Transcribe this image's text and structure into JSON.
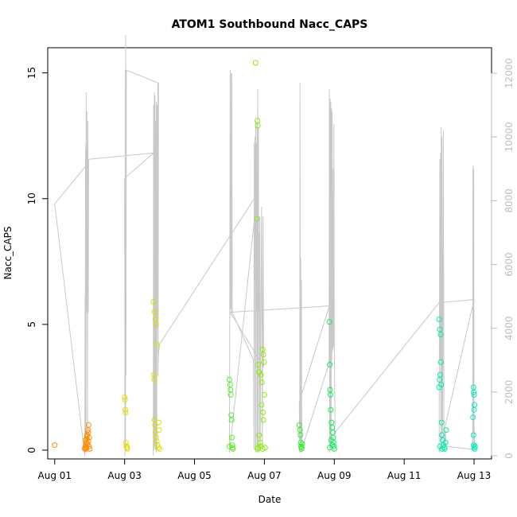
{
  "chart_data": {
    "type": "scatter",
    "title": "ATOM1 Southbound Nacc_CAPS",
    "xlabel": "Date",
    "ylabel": "Nacc_CAPS",
    "x_tick_labels": [
      "Aug 01",
      "Aug 03",
      "Aug 05",
      "Aug 07",
      "Aug 09",
      "Aug 11",
      "Aug 13"
    ],
    "x_tick_days": [
      1,
      3,
      5,
      7,
      9,
      11,
      13
    ],
    "xlim_days": [
      0.8,
      13.5
    ],
    "ylim": [
      -0.35,
      16.0
    ],
    "y_ticks": [
      0,
      5,
      10,
      15
    ],
    "secondary_axis": {
      "range": [
        -100,
        12800
      ],
      "ticks": [
        0,
        2000,
        4000,
        6000,
        8000,
        10000,
        12000
      ],
      "color": "#bdbdbd"
    },
    "grid": false,
    "legend": "none",
    "series": [
      {
        "color": "#ff8c00",
        "points": [
          [
            1.0,
            0.2
          ],
          [
            1.86,
            0.05
          ],
          [
            1.87,
            0.1
          ],
          [
            1.88,
            0.15
          ],
          [
            1.89,
            0.2
          ],
          [
            1.9,
            0.3
          ],
          [
            1.91,
            0.1
          ],
          [
            1.92,
            0.45
          ],
          [
            1.93,
            0.6
          ],
          [
            1.94,
            0.25
          ],
          [
            1.95,
            0.8
          ],
          [
            1.96,
            0.35
          ],
          [
            1.97,
            1.0
          ],
          [
            1.98,
            0.15
          ],
          [
            1.99,
            0.5
          ],
          [
            2.0,
            0.05
          ],
          [
            1.88,
            0.4
          ],
          [
            1.92,
            0.55
          ],
          [
            1.96,
            0.7
          ],
          [
            1.9,
            0.05
          ]
        ]
      },
      {
        "color": "#dddd00",
        "points": [
          [
            3.0,
            2.1
          ],
          [
            3.01,
            2.0
          ],
          [
            3.02,
            1.6
          ],
          [
            3.03,
            1.5
          ],
          [
            3.04,
            0.3
          ],
          [
            3.05,
            0.15
          ],
          [
            3.07,
            0.1
          ],
          [
            3.08,
            0.05
          ],
          [
            3.83,
            5.9
          ],
          [
            3.86,
            5.5
          ],
          [
            3.88,
            5.2
          ],
          [
            3.9,
            5.0
          ],
          [
            3.92,
            4.2
          ],
          [
            3.84,
            3.0
          ],
          [
            3.85,
            2.8
          ],
          [
            3.86,
            1.2
          ],
          [
            3.87,
            1.0
          ],
          [
            3.88,
            0.7
          ],
          [
            3.9,
            0.5
          ],
          [
            3.92,
            0.35
          ],
          [
            3.94,
            0.2
          ],
          [
            3.96,
            0.1
          ],
          [
            3.98,
            1.1
          ],
          [
            3.99,
            0.8
          ],
          [
            4.0,
            0.05
          ]
        ]
      },
      {
        "color": "#88ee00",
        "points": [
          [
            6.75,
            15.4
          ],
          [
            6.8,
            13.1
          ],
          [
            6.81,
            12.9
          ],
          [
            6.79,
            9.2
          ],
          [
            6.95,
            4.0
          ],
          [
            6.97,
            3.8
          ],
          [
            6.99,
            3.5
          ],
          [
            6.82,
            3.4
          ],
          [
            6.85,
            3.1
          ],
          [
            6.9,
            3.0
          ],
          [
            6.93,
            2.7
          ],
          [
            7.0,
            2.2
          ],
          [
            6.96,
            1.5
          ],
          [
            6.97,
            1.2
          ],
          [
            6.92,
            1.8
          ],
          [
            6.85,
            0.6
          ],
          [
            6.88,
            0.3
          ],
          [
            6.9,
            0.15
          ],
          [
            7.02,
            0.1
          ],
          [
            6.8,
            0.05
          ],
          [
            6.82,
            0.1
          ],
          [
            6.95,
            0.05
          ]
        ]
      },
      {
        "color": "#55ee22",
        "points": [
          [
            6.0,
            2.8
          ],
          [
            6.02,
            2.6
          ],
          [
            6.03,
            2.4
          ],
          [
            6.04,
            2.2
          ],
          [
            6.05,
            1.4
          ],
          [
            6.06,
            1.2
          ],
          [
            6.07,
            0.5
          ],
          [
            6.08,
            0.2
          ],
          [
            6.09,
            0.1
          ],
          [
            6.1,
            0.05
          ],
          [
            6.0,
            0.15
          ]
        ]
      },
      {
        "color": "#33ee33",
        "points": [
          [
            8.0,
            1.0
          ],
          [
            8.02,
            0.8
          ],
          [
            8.03,
            0.6
          ],
          [
            8.04,
            0.3
          ],
          [
            8.05,
            0.15
          ],
          [
            8.06,
            0.05
          ],
          [
            8.07,
            0.1
          ],
          [
            8.08,
            0.25
          ]
        ]
      },
      {
        "color": "#11ee55",
        "points": [
          [
            8.86,
            5.1
          ],
          [
            8.87,
            3.4
          ],
          [
            8.88,
            2.4
          ],
          [
            8.89,
            2.2
          ],
          [
            8.9,
            1.6
          ],
          [
            8.92,
            1.1
          ],
          [
            8.94,
            0.9
          ],
          [
            8.96,
            0.7
          ],
          [
            8.97,
            0.5
          ],
          [
            8.98,
            0.3
          ],
          [
            8.99,
            0.15
          ],
          [
            9.0,
            0.05
          ],
          [
            8.87,
            0.1
          ],
          [
            8.91,
            0.4
          ],
          [
            8.95,
            0.2
          ]
        ]
      },
      {
        "color": "#00eeaa",
        "points": [
          [
            12.0,
            5.2
          ],
          [
            12.02,
            4.8
          ],
          [
            12.04,
            4.6
          ],
          [
            12.05,
            3.5
          ],
          [
            12.03,
            3.0
          ],
          [
            12.01,
            2.8
          ],
          [
            12.06,
            2.6
          ],
          [
            12.0,
            2.5
          ],
          [
            12.07,
            1.1
          ],
          [
            12.08,
            0.6
          ],
          [
            12.1,
            0.4
          ],
          [
            12.12,
            0.2
          ],
          [
            12.14,
            0.1
          ],
          [
            12.16,
            0.05
          ],
          [
            12.18,
            0.3
          ],
          [
            12.2,
            0.8
          ],
          [
            12.02,
            0.15
          ],
          [
            12.09,
            0.05
          ]
        ]
      },
      {
        "color": "#00eebb",
        "points": [
          [
            12.98,
            2.5
          ],
          [
            12.99,
            2.3
          ],
          [
            13.0,
            2.2
          ],
          [
            13.01,
            1.8
          ],
          [
            13.0,
            1.6
          ],
          [
            12.97,
            1.3
          ],
          [
            12.98,
            0.6
          ],
          [
            12.99,
            0.2
          ],
          [
            13.0,
            0.1
          ],
          [
            13.02,
            0.05
          ],
          [
            13.03,
            0.15
          ]
        ]
      }
    ],
    "overlay_line": {
      "color": "#c8c8c8",
      "axis": "secondary",
      "points": [
        [
          1.0,
          7900
        ],
        [
          1.97,
          9200
        ],
        [
          1.0,
          7900
        ],
        [
          1.86,
          0
        ],
        [
          1.87,
          5000
        ],
        [
          1.875,
          200
        ],
        [
          1.88,
          9600
        ],
        [
          1.885,
          300
        ],
        [
          1.89,
          9800
        ],
        [
          1.895,
          100
        ],
        [
          1.9,
          11400
        ],
        [
          1.905,
          5200
        ],
        [
          1.91,
          9900
        ],
        [
          1.915,
          4600
        ],
        [
          1.92,
          10800
        ],
        [
          1.925,
          4500
        ],
        [
          1.93,
          9700
        ],
        [
          1.94,
          200
        ],
        [
          1.95,
          10500
        ],
        [
          1.96,
          4500
        ],
        [
          1.97,
          9300
        ],
        [
          3.83,
          9500
        ],
        [
          3.0,
          8700
        ],
        [
          3.01,
          0
        ],
        [
          3.02,
          12100
        ],
        [
          3.025,
          200
        ],
        [
          3.03,
          13200
        ],
        [
          3.04,
          2500
        ],
        [
          3.05,
          12100
        ],
        [
          3.95,
          11700
        ],
        [
          3.96,
          2500
        ],
        [
          3.97,
          11700
        ],
        [
          3.82,
          0
        ],
        [
          3.83,
          11000
        ],
        [
          3.84,
          200
        ],
        [
          3.85,
          11400
        ],
        [
          3.86,
          300
        ],
        [
          3.87,
          11300
        ],
        [
          3.88,
          200
        ],
        [
          3.89,
          10500
        ],
        [
          3.9,
          100
        ],
        [
          3.91,
          11100
        ],
        [
          3.92,
          200
        ],
        [
          3.93,
          11000
        ],
        [
          3.94,
          4000
        ],
        [
          3.95,
          10200
        ],
        [
          3.96,
          2800
        ],
        [
          3.97,
          3200
        ],
        [
          4.0,
          3500
        ],
        [
          6.79,
          8200
        ],
        [
          6.0,
          100
        ],
        [
          6.02,
          12100
        ],
        [
          6.03,
          4600
        ],
        [
          6.04,
          12000
        ],
        [
          6.05,
          4400
        ],
        [
          6.06,
          6000
        ],
        [
          6.07,
          12000
        ],
        [
          6.08,
          4500
        ],
        [
          6.69,
          3000
        ],
        [
          6.7,
          200
        ],
        [
          6.71,
          9800
        ],
        [
          6.72,
          5500
        ],
        [
          6.73,
          10000
        ],
        [
          6.74,
          200
        ],
        [
          6.75,
          10500
        ],
        [
          6.76,
          100
        ],
        [
          6.77,
          9800
        ],
        [
          6.78,
          4600
        ],
        [
          6.79,
          10400
        ],
        [
          6.8,
          200
        ],
        [
          6.81,
          11500
        ],
        [
          6.82,
          100
        ],
        [
          6.83,
          10300
        ],
        [
          6.84,
          4500
        ],
        [
          6.85,
          7000
        ],
        [
          6.86,
          100
        ],
        [
          6.87,
          7500
        ],
        [
          6.88,
          300
        ],
        [
          6.9,
          4500
        ],
        [
          6.92,
          7800
        ],
        [
          6.94,
          200
        ],
        [
          6.96,
          7500
        ],
        [
          6.98,
          2800
        ],
        [
          6.02,
          4500
        ],
        [
          8.86,
          4700
        ],
        [
          8.0,
          1700
        ],
        [
          8.01,
          100
        ],
        [
          8.02,
          11700
        ],
        [
          8.03,
          500
        ],
        [
          8.04,
          6200
        ],
        [
          8.05,
          100
        ],
        [
          8.06,
          5500
        ],
        [
          8.07,
          200
        ],
        [
          8.85,
          2900
        ],
        [
          8.86,
          11500
        ],
        [
          8.87,
          100
        ],
        [
          8.88,
          11200
        ],
        [
          8.89,
          200
        ],
        [
          8.9,
          11100
        ],
        [
          8.91,
          400
        ],
        [
          8.92,
          10900
        ],
        [
          8.93,
          3000
        ],
        [
          8.94,
          10800
        ],
        [
          8.95,
          3500
        ],
        [
          8.96,
          3300
        ],
        [
          8.97,
          9000
        ],
        [
          8.98,
          3400
        ],
        [
          8.99,
          10400
        ],
        [
          9.0,
          3500
        ],
        [
          9.02,
          1000
        ],
        [
          9.0,
          700
        ],
        [
          12.0,
          4800
        ],
        [
          13.0,
          4900
        ],
        [
          12.0,
          100
        ],
        [
          12.02,
          9300
        ],
        [
          12.03,
          3000
        ],
        [
          12.04,
          9500
        ],
        [
          12.05,
          200
        ],
        [
          12.06,
          10300
        ],
        [
          12.07,
          500
        ],
        [
          12.08,
          10000
        ],
        [
          12.1,
          700
        ],
        [
          12.12,
          10200
        ],
        [
          12.14,
          300
        ],
        [
          12.16,
          400
        ],
        [
          12.18,
          800
        ],
        [
          12.2,
          300
        ],
        [
          12.96,
          200
        ],
        [
          12.97,
          9100
        ],
        [
          12.98,
          200
        ],
        [
          12.99,
          9000
        ],
        [
          13.0,
          1000
        ],
        [
          13.02,
          200
        ]
      ]
    }
  }
}
